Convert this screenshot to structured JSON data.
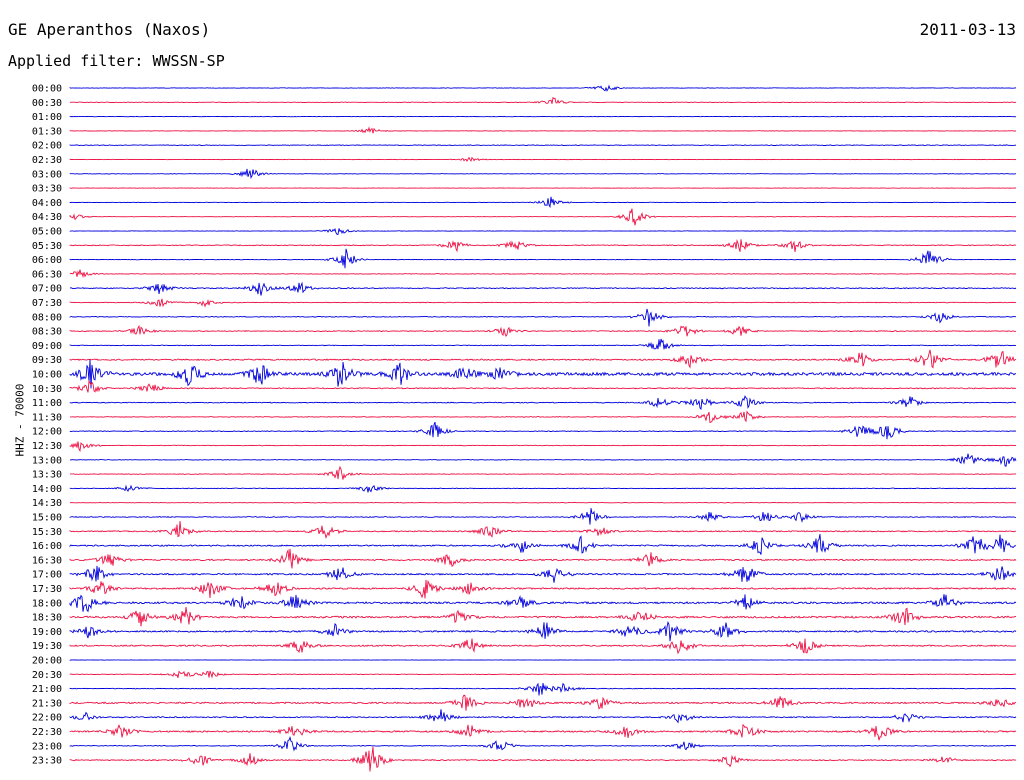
{
  "header": {
    "station": "GE Aperanthos (Naxos)",
    "date": "2011-03-13",
    "filter": "Applied filter: WWSSN-SP",
    "channel": "HHZ - 70000"
  },
  "chart_data": {
    "type": "line",
    "title": "GE Aperanthos (Naxos)",
    "subtitle": "Applied filter: WWSSN-SP",
    "ylabel": "HHZ - 70000",
    "xlabel": "",
    "grid": false,
    "series_colors": [
      "#0000dd",
      "#ee1144"
    ],
    "rows": [
      {
        "label": "00:00",
        "color": "#0000dd",
        "level": 0.15,
        "events": [
          [
            605,
            0.5
          ]
        ]
      },
      {
        "label": "00:30",
        "color": "#ee1144",
        "level": 0.15,
        "events": [
          [
            553,
            0.6
          ]
        ]
      },
      {
        "label": "01:00",
        "color": "#0000dd",
        "level": 0.12,
        "events": []
      },
      {
        "label": "01:30",
        "color": "#ee1144",
        "level": 0.12,
        "events": [
          [
            370,
            0.4
          ]
        ]
      },
      {
        "label": "02:00",
        "color": "#0000dd",
        "level": 0.18,
        "events": []
      },
      {
        "label": "02:30",
        "color": "#ee1144",
        "level": 0.12,
        "events": [
          [
            470,
            0.3
          ]
        ]
      },
      {
        "label": "03:00",
        "color": "#0000dd",
        "level": 0.12,
        "events": [
          [
            250,
            0.8
          ]
        ]
      },
      {
        "label": "03:30",
        "color": "#ee1144",
        "level": 0.1,
        "events": []
      },
      {
        "label": "04:00",
        "color": "#0000dd",
        "level": 0.12,
        "events": [
          [
            550,
            0.7
          ]
        ]
      },
      {
        "label": "04:30",
        "color": "#ee1144",
        "level": 0.1,
        "events": [
          [
            634,
            1.2
          ],
          [
            75,
            0.4
          ]
        ]
      },
      {
        "label": "05:00",
        "color": "#0000dd",
        "level": 0.12,
        "events": [
          [
            338,
            0.5
          ]
        ]
      },
      {
        "label": "05:30",
        "color": "#ee1144",
        "level": 0.25,
        "events": [
          [
            455,
            0.8
          ],
          [
            515,
            0.7
          ],
          [
            740,
            0.8
          ],
          [
            795,
            0.7
          ]
        ]
      },
      {
        "label": "06:00",
        "color": "#0000dd",
        "level": 0.15,
        "events": [
          [
            346,
            1.2
          ],
          [
            930,
            1.4
          ]
        ]
      },
      {
        "label": "06:30",
        "color": "#ee1144",
        "level": 0.18,
        "events": [
          [
            80,
            0.5
          ]
        ]
      },
      {
        "label": "07:00",
        "color": "#0000dd",
        "level": 0.3,
        "events": [
          [
            160,
            0.8
          ],
          [
            260,
            0.9
          ],
          [
            300,
            0.7
          ]
        ]
      },
      {
        "label": "07:30",
        "color": "#ee1144",
        "level": 0.2,
        "events": [
          [
            160,
            0.6
          ],
          [
            205,
            0.6
          ]
        ]
      },
      {
        "label": "08:00",
        "color": "#0000dd",
        "level": 0.2,
        "events": [
          [
            650,
            1.3
          ],
          [
            940,
            0.7
          ]
        ]
      },
      {
        "label": "08:30",
        "color": "#ee1144",
        "level": 0.25,
        "events": [
          [
            140,
            0.6
          ],
          [
            505,
            0.6
          ],
          [
            685,
            0.9
          ],
          [
            740,
            0.7
          ]
        ]
      },
      {
        "label": "09:00",
        "color": "#0000dd",
        "level": 0.2,
        "events": [
          [
            660,
            1.0
          ]
        ]
      },
      {
        "label": "09:30",
        "color": "#ee1144",
        "level": 0.4,
        "events": [
          [
            690,
            1.0
          ],
          [
            860,
            1.0
          ],
          [
            930,
            1.4
          ],
          [
            1000,
            1.6
          ]
        ]
      },
      {
        "label": "10:00",
        "color": "#0000dd",
        "level": 0.9,
        "events": [
          [
            90,
            1.8
          ],
          [
            190,
            1.6
          ],
          [
            260,
            1.6
          ],
          [
            340,
            1.8
          ],
          [
            400,
            1.5
          ],
          [
            465,
            0.9
          ],
          [
            500,
            0.8
          ]
        ]
      },
      {
        "label": "10:30",
        "color": "#ee1144",
        "level": 0.3,
        "events": [
          [
            90,
            0.9
          ],
          [
            150,
            0.7
          ]
        ]
      },
      {
        "label": "11:00",
        "color": "#0000dd",
        "level": 0.25,
        "events": [
          [
            660,
            0.8
          ],
          [
            700,
            0.9
          ],
          [
            745,
            0.9
          ],
          [
            910,
            0.8
          ]
        ]
      },
      {
        "label": "11:30",
        "color": "#ee1144",
        "level": 0.2,
        "events": [
          [
            710,
            0.7
          ],
          [
            745,
            1.0
          ]
        ]
      },
      {
        "label": "12:00",
        "color": "#0000dd",
        "level": 0.22,
        "events": [
          [
            435,
            1.0
          ],
          [
            860,
            0.9
          ],
          [
            888,
            1.2
          ]
        ]
      },
      {
        "label": "12:30",
        "color": "#ee1144",
        "level": 0.18,
        "events": [
          [
            80,
            0.6
          ]
        ]
      },
      {
        "label": "13:00",
        "color": "#0000dd",
        "level": 0.15,
        "events": [
          [
            968,
            1.0
          ],
          [
            1005,
            0.8
          ]
        ]
      },
      {
        "label": "13:30",
        "color": "#ee1144",
        "level": 0.18,
        "events": [
          [
            340,
            0.9
          ]
        ]
      },
      {
        "label": "14:00",
        "color": "#0000dd",
        "level": 0.18,
        "events": [
          [
            370,
            0.6
          ],
          [
            130,
            0.4
          ]
        ]
      },
      {
        "label": "14:30",
        "color": "#ee1144",
        "level": 0.12,
        "events": []
      },
      {
        "label": "15:00",
        "color": "#0000dd",
        "level": 0.25,
        "events": [
          [
            590,
            1.1
          ],
          [
            710,
            0.6
          ],
          [
            765,
            0.7
          ],
          [
            800,
            0.6
          ]
        ]
      },
      {
        "label": "15:30",
        "color": "#ee1144",
        "level": 0.35,
        "events": [
          [
            180,
            1.1
          ],
          [
            325,
            0.9
          ],
          [
            490,
            0.8
          ],
          [
            600,
            0.6
          ]
        ]
      },
      {
        "label": "16:00",
        "color": "#0000dd",
        "level": 0.4,
        "events": [
          [
            520,
            1.1
          ],
          [
            580,
            1.2
          ],
          [
            760,
            1.1
          ],
          [
            820,
            1.3
          ],
          [
            975,
            1.4
          ],
          [
            1000,
            1.2
          ]
        ]
      },
      {
        "label": "16:30",
        "color": "#ee1144",
        "level": 0.4,
        "events": [
          [
            110,
            0.9
          ],
          [
            290,
            1.3
          ],
          [
            450,
            0.9
          ],
          [
            650,
            0.9
          ]
        ]
      },
      {
        "label": "17:00",
        "color": "#0000dd",
        "level": 0.45,
        "events": [
          [
            95,
            1.2
          ],
          [
            340,
            1.0
          ],
          [
            555,
            1.1
          ],
          [
            745,
            1.4
          ],
          [
            1000,
            1.1
          ]
        ]
      },
      {
        "label": "17:30",
        "color": "#ee1144",
        "level": 0.45,
        "events": [
          [
            100,
            1.0
          ],
          [
            210,
            1.3
          ],
          [
            275,
            1.0
          ],
          [
            425,
            1.4
          ],
          [
            470,
            0.9
          ]
        ]
      },
      {
        "label": "18:00",
        "color": "#0000dd",
        "level": 0.55,
        "events": [
          [
            85,
            1.5
          ],
          [
            240,
            1.0
          ],
          [
            295,
            1.1
          ],
          [
            520,
            0.9
          ],
          [
            745,
            1.0
          ],
          [
            945,
            1.1
          ]
        ]
      },
      {
        "label": "18:30",
        "color": "#ee1144",
        "level": 0.55,
        "events": [
          [
            140,
            1.2
          ],
          [
            185,
            1.3
          ],
          [
            460,
            1.1
          ],
          [
            640,
            0.9
          ],
          [
            905,
            1.5
          ]
        ]
      },
      {
        "label": "19:00",
        "color": "#0000dd",
        "level": 0.45,
        "events": [
          [
            90,
            0.9
          ],
          [
            335,
            0.9
          ],
          [
            545,
            1.2
          ],
          [
            630,
            1.0
          ],
          [
            670,
            1.4
          ],
          [
            725,
            1.1
          ]
        ]
      },
      {
        "label": "19:30",
        "color": "#ee1144",
        "level": 0.4,
        "events": [
          [
            300,
            0.9
          ],
          [
            470,
            1.0
          ],
          [
            680,
            1.2
          ],
          [
            805,
            1.1
          ]
        ]
      },
      {
        "label": "20:00",
        "color": "#0000dd",
        "level": 0.1,
        "events": []
      },
      {
        "label": "20:30",
        "color": "#ee1144",
        "level": 0.15,
        "events": [
          [
            180,
            0.6
          ],
          [
            210,
            0.5
          ]
        ]
      },
      {
        "label": "21:00",
        "color": "#0000dd",
        "level": 0.2,
        "events": [
          [
            540,
            0.9
          ],
          [
            565,
            0.7
          ]
        ]
      },
      {
        "label": "21:30",
        "color": "#ee1144",
        "level": 0.45,
        "events": [
          [
            465,
            1.0
          ],
          [
            525,
            1.0
          ],
          [
            600,
            0.9
          ],
          [
            780,
            1.0
          ],
          [
            1000,
            0.7
          ]
        ]
      },
      {
        "label": "22:00",
        "color": "#0000dd",
        "level": 0.35,
        "events": [
          [
            85,
            0.6
          ],
          [
            440,
            1.0
          ],
          [
            680,
            0.7
          ],
          [
            905,
            0.7
          ]
        ]
      },
      {
        "label": "22:30",
        "color": "#ee1144",
        "level": 0.45,
        "events": [
          [
            120,
            0.9
          ],
          [
            295,
            1.0
          ],
          [
            470,
            0.9
          ],
          [
            625,
            1.0
          ],
          [
            745,
            1.2
          ],
          [
            880,
            1.1
          ]
        ]
      },
      {
        "label": "23:00",
        "color": "#0000dd",
        "level": 0.2,
        "events": [
          [
            290,
            0.9
          ],
          [
            500,
            0.9
          ],
          [
            685,
            0.6
          ]
        ]
      },
      {
        "label": "23:30",
        "color": "#ee1144",
        "level": 0.3,
        "events": [
          [
            200,
            0.9
          ],
          [
            250,
            0.8
          ],
          [
            372,
            2.2
          ],
          [
            730,
            0.7
          ],
          [
            945,
            0.5
          ]
        ]
      }
    ]
  }
}
